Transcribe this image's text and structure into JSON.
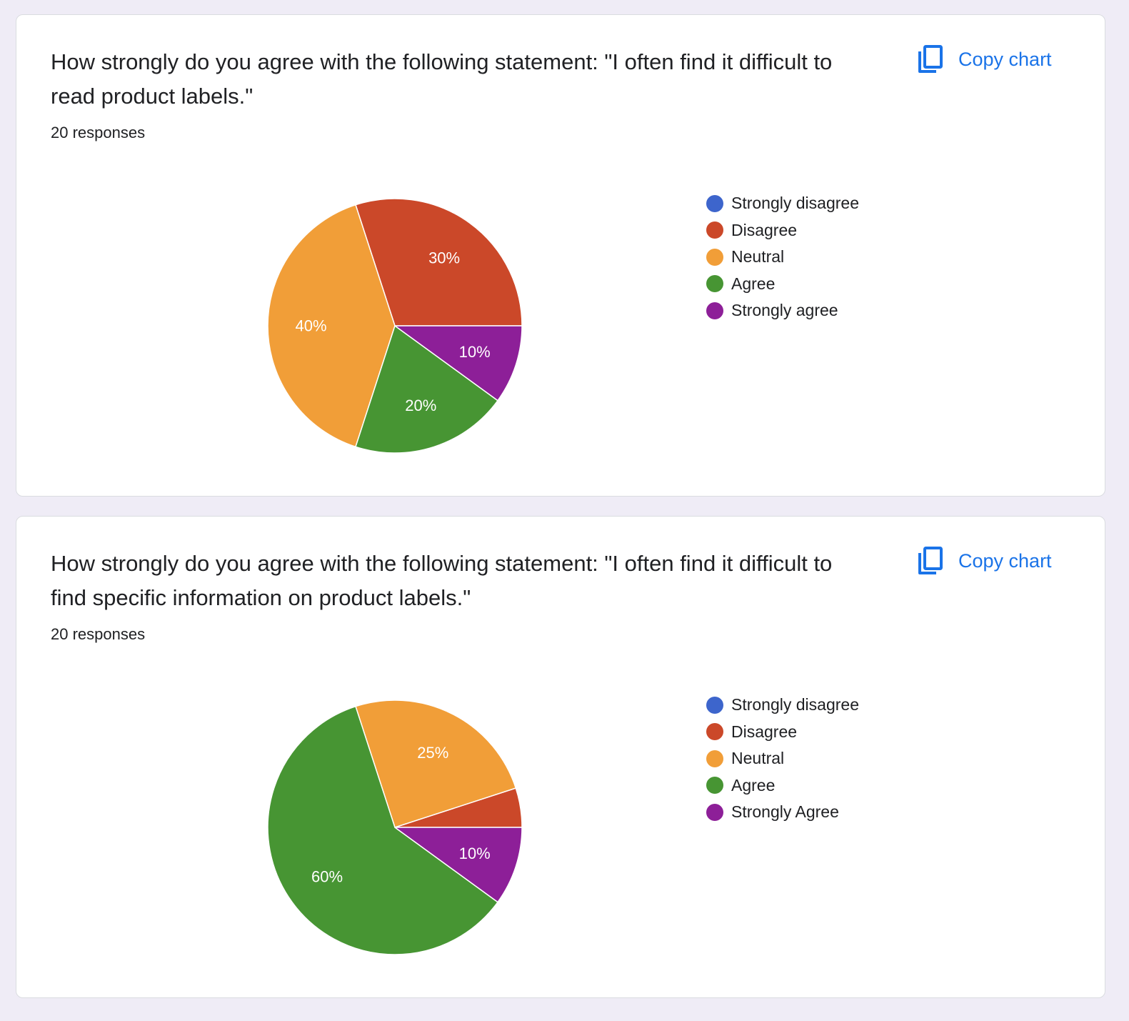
{
  "copy_label": "Copy chart",
  "charts": [
    {
      "question": "How strongly do you agree with the following statement: \"I often find it difficult to read product labels.\"",
      "responses": "20 responses"
    },
    {
      "question": "How strongly do you agree with the following statement: \"I often find it difficult to find specific information on product labels.\"",
      "responses": "20 responses"
    }
  ],
  "chart_data": [
    {
      "type": "pie",
      "title": "How strongly do you agree with the following statement: \"I often find it difficult to read product labels.\"",
      "legend_position": "right",
      "categories": [
        "Strongly disagree",
        "Disagree",
        "Neutral",
        "Agree",
        "Strongly agree"
      ],
      "values": [
        0,
        30,
        40,
        20,
        10
      ],
      "labels": [
        "",
        "30%",
        "40%",
        "20%",
        "10%"
      ],
      "colors": [
        "#3d65cc",
        "#cb4829",
        "#f19e38",
        "#479533",
        "#8d1f98"
      ]
    },
    {
      "type": "pie",
      "title": "How strongly do you agree with the following statement: \"I often find it difficult to find specific information on product labels.\"",
      "legend_position": "right",
      "categories": [
        "Strongly disagree",
        "Disagree",
        "Neutral",
        "Agree",
        "Strongly Agree"
      ],
      "values": [
        0,
        5,
        25,
        60,
        10
      ],
      "labels": [
        "",
        "",
        "25%",
        "60%",
        "10%"
      ],
      "colors": [
        "#3d65cc",
        "#cb4829",
        "#f19e38",
        "#479533",
        "#8d1f98"
      ]
    }
  ]
}
